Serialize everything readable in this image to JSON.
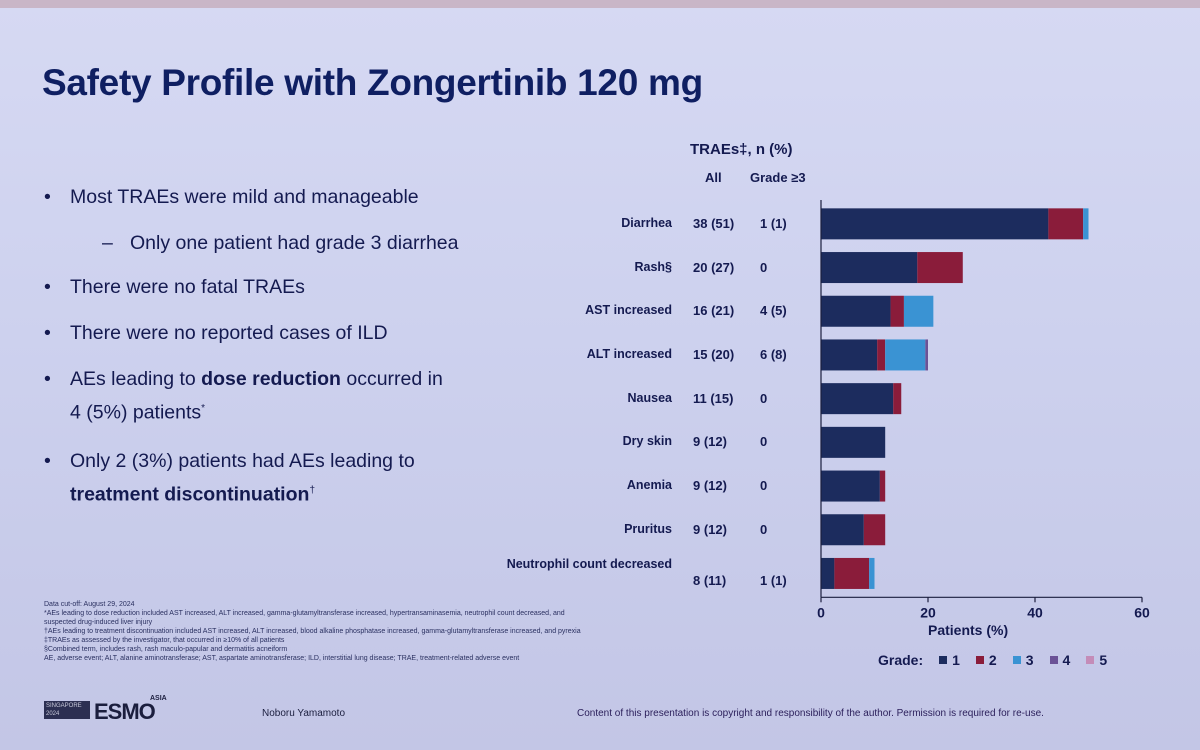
{
  "slide": {
    "title": "Safety Profile with Zongertinib 120 mg",
    "bullets": [
      {
        "text": "Most TRAEs were mild and manageable"
      },
      {
        "text": "Only one patient had grade 3 diarrhea",
        "sub": true
      },
      {
        "text": "There were no fatal TRAEs"
      },
      {
        "text": "There were no reported cases of ILD"
      },
      {
        "pre": "AEs leading to ",
        "bold": "dose reduction",
        "post": " occurred in",
        "line2": "4 (5%) patients",
        "mark": "*"
      },
      {
        "pre": "Only 2 (3%) patients had AEs leading to",
        "line2_bold": "treatment discontinuation",
        "mark": "†"
      }
    ],
    "table_header": "TRAEs‡, n (%)",
    "col_all": "All",
    "col_grade3": "Grade ≥3",
    "footnotes": [
      "Data cut-off: August 29, 2024",
      "*AEs leading to dose reduction included AST increased, ALT increased, gamma-glutamyltransferase increased, hypertransaminasemia, neutrophil count decreased, and",
      "suspected drug-induced liver injury",
      "†AEs leading to treatment discontinuation included AST increased, ALT increased, blood alkaline phosphatase increased, gamma-glutamyltransferase increased, and pyrexia",
      "‡TRAEs as assessed by the investigator, that occurred in ≥10% of all patients",
      "§Combined term, includes rash, rash maculo-papular and dermatitis acneiform",
      "AE, adverse event; ALT, alanine aminotransferase; AST, aspartate aminotransferase; ILD, interstitial lung disease; TRAE, treatment-related adverse event"
    ],
    "logo_small": "SINGAPORE 2024",
    "logo_text": "ESMO",
    "logo_sup": "ASIA",
    "presenter": "Noboru Yamamoto",
    "copyright": "Content of this presentation is copyright and responsibility of the author. Permission is required for re-use."
  },
  "chart_data": {
    "type": "bar",
    "orientation": "horizontal",
    "stacked": true,
    "categories": [
      "Diarrhea",
      "Rash§",
      "AST increased",
      "ALT increased",
      "Nausea",
      "Dry skin",
      "Anemia",
      "Pruritus",
      "Neutrophil count decreased"
    ],
    "all_counts": [
      "38 (51)",
      "20 (27)",
      "16 (21)",
      "15 (20)",
      "11 (15)",
      "9 (12)",
      "9 (12)",
      "9 (12)",
      "8 (11)"
    ],
    "grade3_counts": [
      "1 (1)",
      "0",
      "4 (5)",
      "6 (8)",
      "0",
      "0",
      "0",
      "0",
      "1 (1)"
    ],
    "series": [
      {
        "name": "1",
        "color": "#1c2c5e",
        "values": [
          42.5,
          18.0,
          13.0,
          10.5,
          13.5,
          12.0,
          11.0,
          8.0,
          2.5
        ]
      },
      {
        "name": "2",
        "color": "#8a1c3a",
        "values": [
          6.5,
          8.5,
          2.5,
          1.5,
          1.5,
          0,
          1.0,
          4.0,
          6.5
        ]
      },
      {
        "name": "3",
        "color": "#3a93d3",
        "values": [
          1.0,
          0,
          5.5,
          7.5,
          0,
          0,
          0,
          0,
          1.0
        ]
      },
      {
        "name": "4",
        "color": "#6b5296",
        "values": [
          0,
          0,
          0,
          0.5,
          0,
          0,
          0,
          0,
          0
        ]
      },
      {
        "name": "5",
        "color": "#c48cb8",
        "values": [
          0,
          0,
          0,
          0,
          0,
          0,
          0,
          0,
          0
        ]
      }
    ],
    "xlabel": "Patients (%)",
    "xlim": [
      0,
      60
    ],
    "xticks": [
      0,
      20,
      40,
      60
    ],
    "legend_title": "Grade:",
    "legend_placement": "bottom-right"
  }
}
